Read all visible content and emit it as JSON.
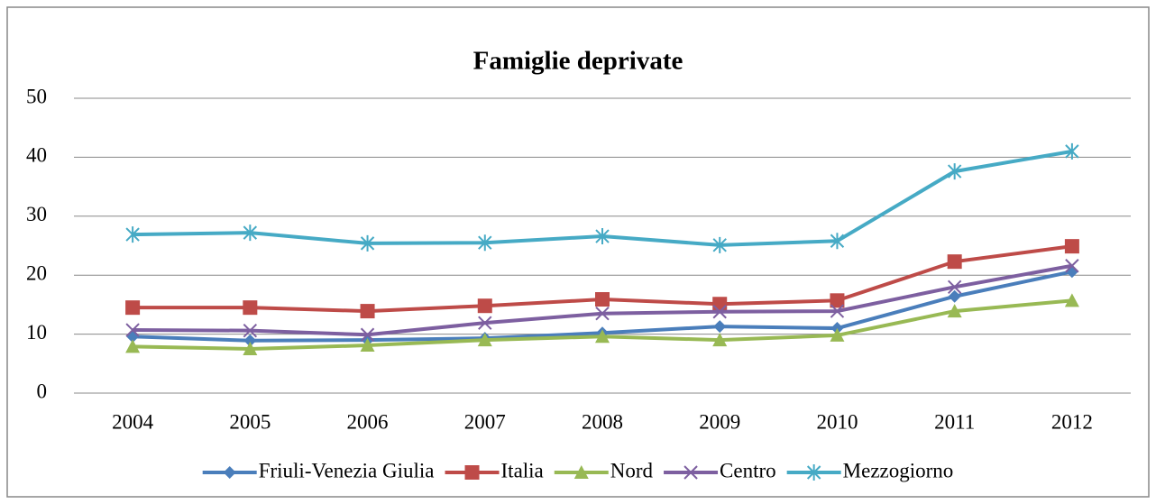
{
  "chart_data": {
    "type": "line",
    "title": "Famiglie deprivate",
    "categories": [
      "2004",
      "2005",
      "2006",
      "2007",
      "2008",
      "2009",
      "2010",
      "2011",
      "2012"
    ],
    "ylim": [
      0,
      50
    ],
    "yticks": [
      0,
      10,
      20,
      30,
      40,
      50
    ],
    "grid": true,
    "legend": "bottom",
    "series": [
      {
        "name": "Friuli-Venezia Giulia",
        "color": "#4a7ebb",
        "marker": "diamond",
        "values": [
          9.6,
          8.9,
          9.0,
          9.3,
          10.2,
          11.3,
          11.0,
          16.4,
          20.6
        ]
      },
      {
        "name": "Italia",
        "color": "#be4b48",
        "marker": "square",
        "values": [
          14.5,
          14.5,
          13.9,
          14.8,
          15.9,
          15.1,
          15.7,
          22.3,
          24.9
        ]
      },
      {
        "name": "Nord",
        "color": "#98b954",
        "marker": "triangle",
        "values": [
          7.9,
          7.5,
          8.1,
          9.0,
          9.6,
          9.0,
          9.8,
          13.9,
          15.7
        ]
      },
      {
        "name": "Centro",
        "color": "#7d5fa0",
        "marker": "x",
        "values": [
          10.7,
          10.6,
          9.9,
          11.9,
          13.5,
          13.8,
          13.9,
          18.0,
          21.6
        ]
      },
      {
        "name": "Mezzogiorno",
        "color": "#46aac5",
        "marker": "star",
        "values": [
          26.9,
          27.2,
          25.4,
          25.5,
          26.6,
          25.1,
          25.8,
          37.6,
          41.0
        ]
      }
    ]
  }
}
